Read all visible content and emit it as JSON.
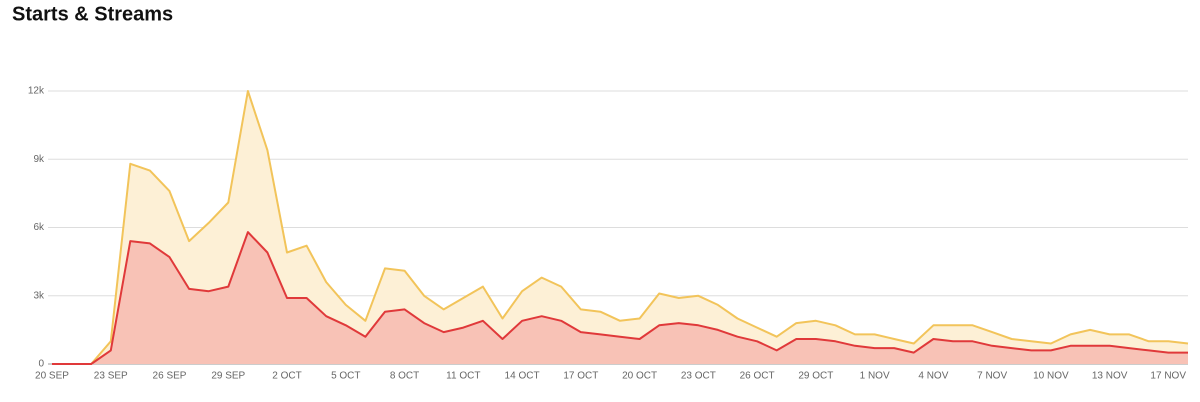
{
  "chart_data": {
    "type": "area",
    "title": "Starts & Streams",
    "categories": [
      "20 SEP",
      null,
      null,
      "23 SEP",
      null,
      null,
      "26 SEP",
      null,
      null,
      "29 SEP",
      null,
      null,
      "2 OCT",
      null,
      null,
      "5 OCT",
      null,
      null,
      "8 OCT",
      null,
      null,
      "11 OCT",
      null,
      null,
      "14 OCT",
      null,
      null,
      "17 OCT",
      null,
      null,
      "20 OCT",
      null,
      null,
      "23 OCT",
      null,
      null,
      "26 OCT",
      null,
      null,
      "29 OCT",
      null,
      null,
      "1 NOV",
      null,
      null,
      "4 NOV",
      null,
      null,
      "7 NOV",
      null,
      null,
      "10 NOV",
      null,
      null,
      "13 NOV",
      null,
      null,
      null,
      "17 NOV"
    ],
    "series": [
      {
        "color": "#f2c45a",
        "fill": "#fdf0d6",
        "values": [
          0,
          0,
          0,
          1000,
          8800,
          8500,
          7600,
          5400,
          6200,
          7100,
          12000,
          9400,
          4900,
          5200,
          3600,
          2600,
          1900,
          4200,
          4100,
          3000,
          2400,
          2900,
          3400,
          2000,
          3200,
          3800,
          3400,
          2400,
          2300,
          1900,
          2000,
          3100,
          2900,
          3000,
          2600,
          2000,
          1600,
          1200,
          1800,
          1900,
          1700,
          1300,
          1300,
          1100,
          900,
          1700,
          1700,
          1700,
          1400,
          1100,
          1000,
          900,
          1300,
          1500,
          1300,
          1300,
          1000,
          1000,
          900
        ]
      },
      {
        "color": "#e0393a",
        "fill": "#f8c2b6",
        "values": [
          0,
          0,
          0,
          600,
          5400,
          5300,
          4700,
          3300,
          3200,
          3400,
          5800,
          4900,
          2900,
          2900,
          2100,
          1700,
          1200,
          2300,
          2400,
          1800,
          1400,
          1600,
          1900,
          1100,
          1900,
          2100,
          1900,
          1400,
          1300,
          1200,
          1100,
          1700,
          1800,
          1700,
          1500,
          1200,
          1000,
          600,
          1100,
          1100,
          1000,
          800,
          700,
          700,
          500,
          1100,
          1000,
          1000,
          800,
          700,
          600,
          600,
          800,
          800,
          800,
          700,
          600,
          500,
          500
        ]
      }
    ],
    "ylim": [
      0,
      12000
    ],
    "yticks": [
      0,
      {
        "value": 3000,
        "label": "3k"
      },
      {
        "value": 6000,
        "label": "6k"
      },
      {
        "value": 9000,
        "label": "9k"
      },
      {
        "value": 12000,
        "label": "12k"
      }
    ],
    "grid": true
  }
}
